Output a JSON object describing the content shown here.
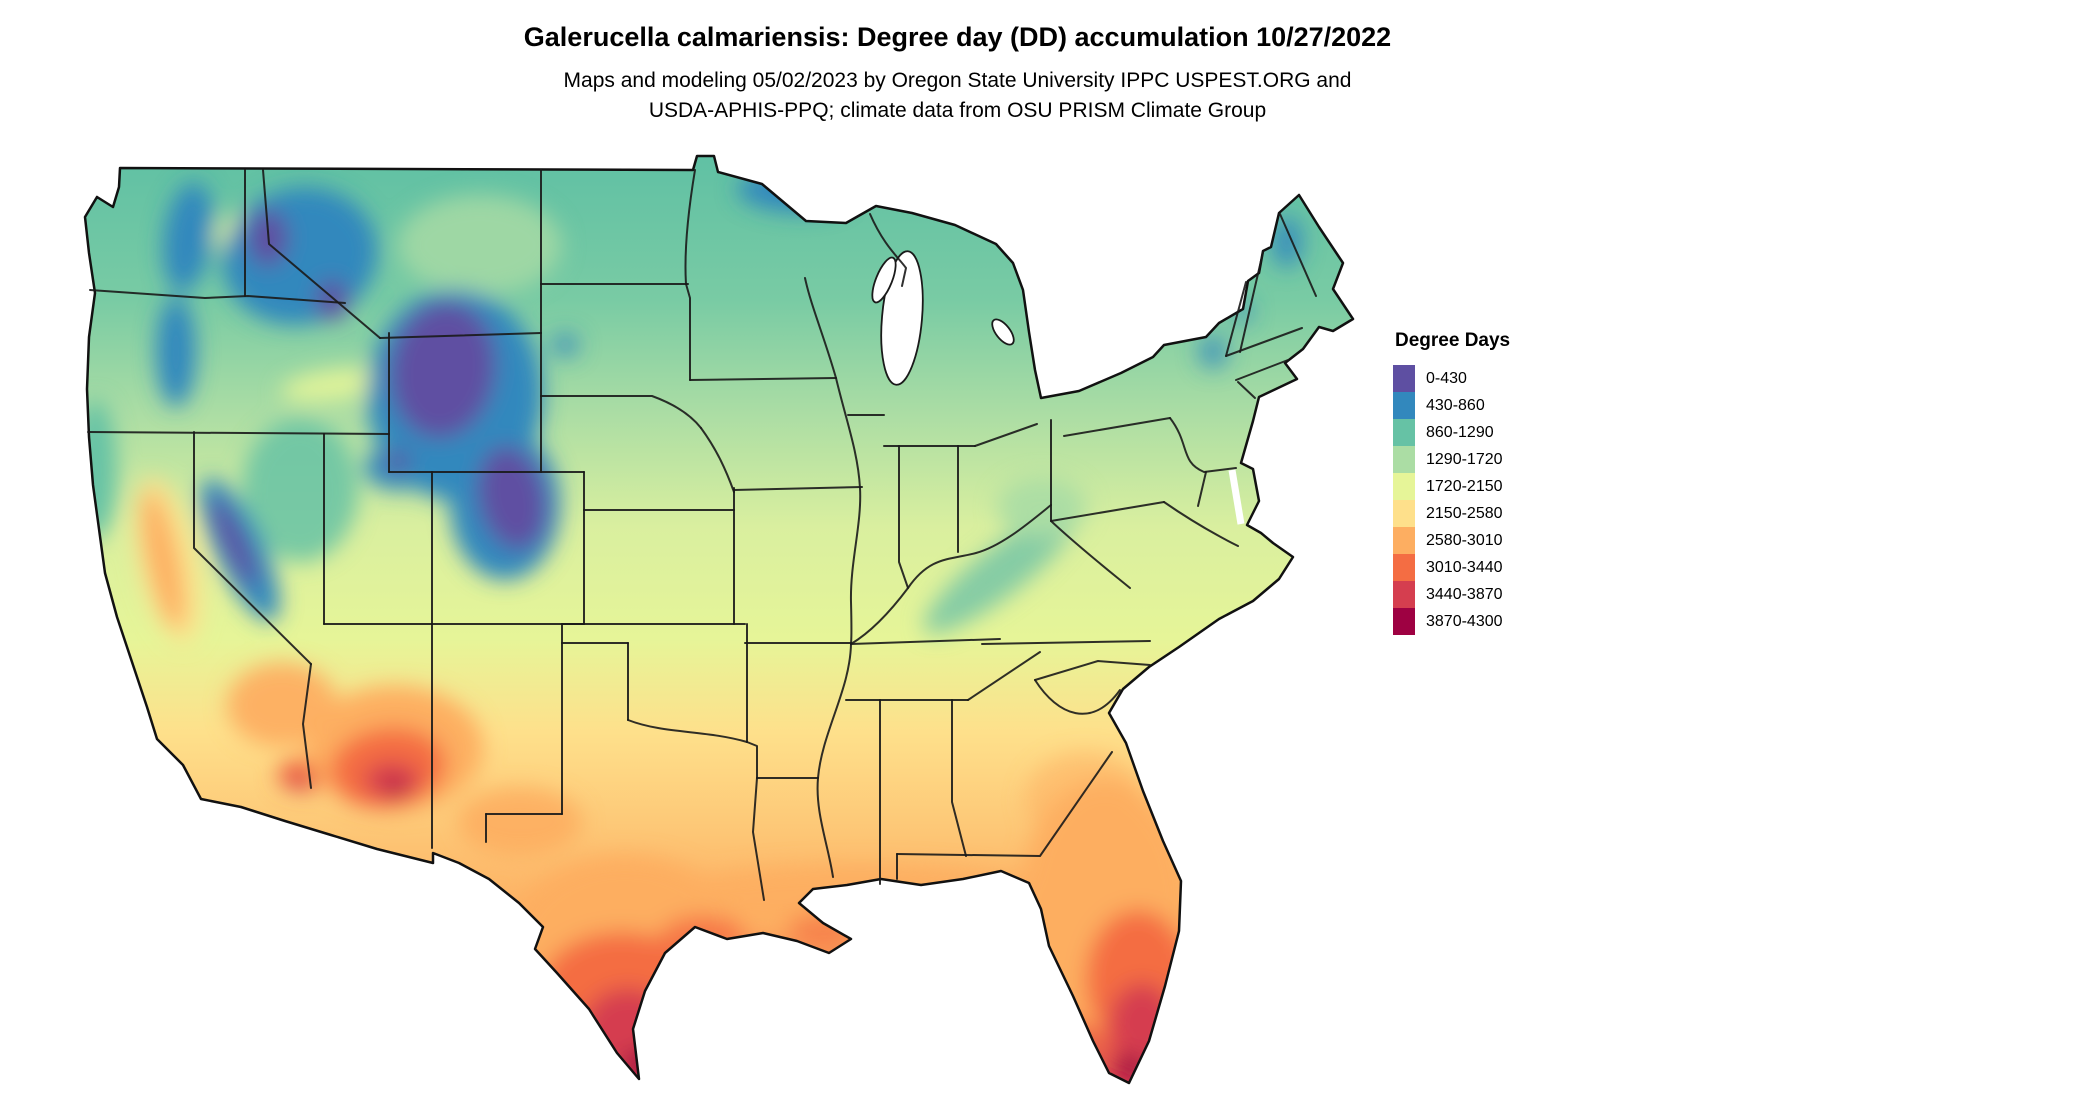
{
  "header": {
    "title": "Galerucella calmariensis: Degree day (DD) accumulation 10/27/2022",
    "subtitle_line1": "Maps and modeling 05/02/2023 by Oregon State University IPPC USPEST.ORG and",
    "subtitle_line2": "USDA-APHIS-PPQ; climate data from OSU PRISM Climate Group"
  },
  "legend": {
    "title": "Degree Days",
    "entries": [
      {
        "label": "0-430",
        "color": "#5e4fa2"
      },
      {
        "label": "430-860",
        "color": "#3288bd"
      },
      {
        "label": "860-1290",
        "color": "#66c2a5"
      },
      {
        "label": "1290-1720",
        "color": "#abdda4"
      },
      {
        "label": "1720-2150",
        "color": "#e6f598"
      },
      {
        "label": "2150-2580",
        "color": "#fee08b"
      },
      {
        "label": "2580-3010",
        "color": "#fdae61"
      },
      {
        "label": "3010-3440",
        "color": "#f46d43"
      },
      {
        "label": "3440-3870",
        "color": "#d53e4f"
      },
      {
        "label": "3870-4300",
        "color": "#9e0142"
      }
    ]
  },
  "map": {
    "description": "Contiguous United States raster map shaded by accumulated degree days: purple and blue (low accumulation) over the Cascades, Sierra Nevada, and Rocky Mountains and across the northern tier; greens and pale yellows across the Plains, Midwest and Northeast; orange to deep red (high accumulation) across the Desert Southwest, southern Texas, the Gulf Coast, and peninsular Florida, with darkest maroon at the south Texas and south Florida tips. Black lines mark state boundaries."
  }
}
